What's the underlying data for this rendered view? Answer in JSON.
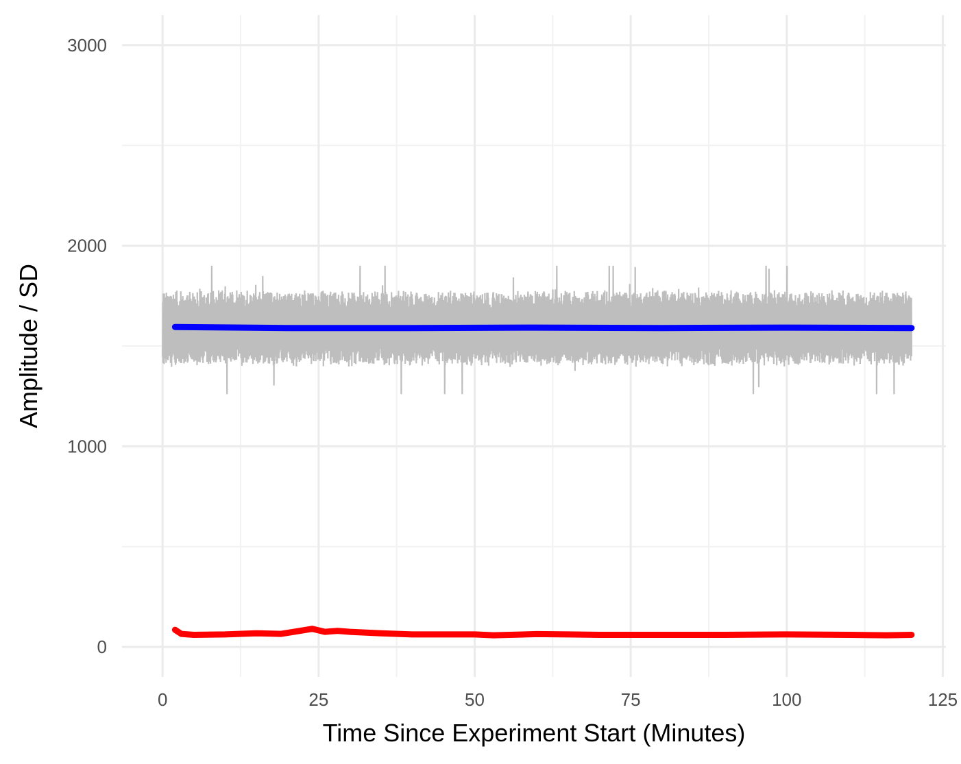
{
  "chart_data": {
    "type": "line",
    "title": "",
    "xlabel": "Time Since Experiment Start (Minutes)",
    "ylabel": "Amplitude / SD",
    "xlim": [
      -6.5,
      125.5
    ],
    "ylim": [
      -150,
      3150
    ],
    "x_ticks": [
      0,
      25,
      50,
      75,
      100,
      125
    ],
    "x_tick_labels": [
      "0",
      "25",
      "50",
      "75",
      "100",
      "125"
    ],
    "y_ticks": [
      0,
      1000,
      2000,
      3000
    ],
    "y_tick_labels": [
      "0",
      "1000",
      "2000",
      "3000"
    ],
    "grid": true,
    "legend": "none",
    "series": [
      {
        "style": "noisy-band",
        "color": "#bebebe",
        "x_range": [
          0,
          120
        ],
        "center": 1590,
        "typical_range": [
          1420,
          1780
        ],
        "min": 1260,
        "max": 1900
      },
      {
        "color": "#0000ff",
        "x": [
          2,
          20,
          40,
          60,
          80,
          100,
          120
        ],
        "values": [
          1595,
          1590,
          1590,
          1592,
          1590,
          1592,
          1590
        ]
      },
      {
        "color": "#ff0000",
        "x": [
          2,
          3,
          5,
          10,
          15,
          19,
          22,
          24,
          26,
          28,
          30,
          35,
          40,
          50,
          53,
          60,
          65,
          70,
          80,
          90,
          100,
          110,
          116,
          120
        ],
        "values": [
          85,
          65,
          60,
          62,
          68,
          65,
          80,
          90,
          75,
          80,
          75,
          68,
          62,
          62,
          58,
          64,
          62,
          60,
          60,
          60,
          62,
          60,
          58,
          60
        ]
      }
    ]
  }
}
